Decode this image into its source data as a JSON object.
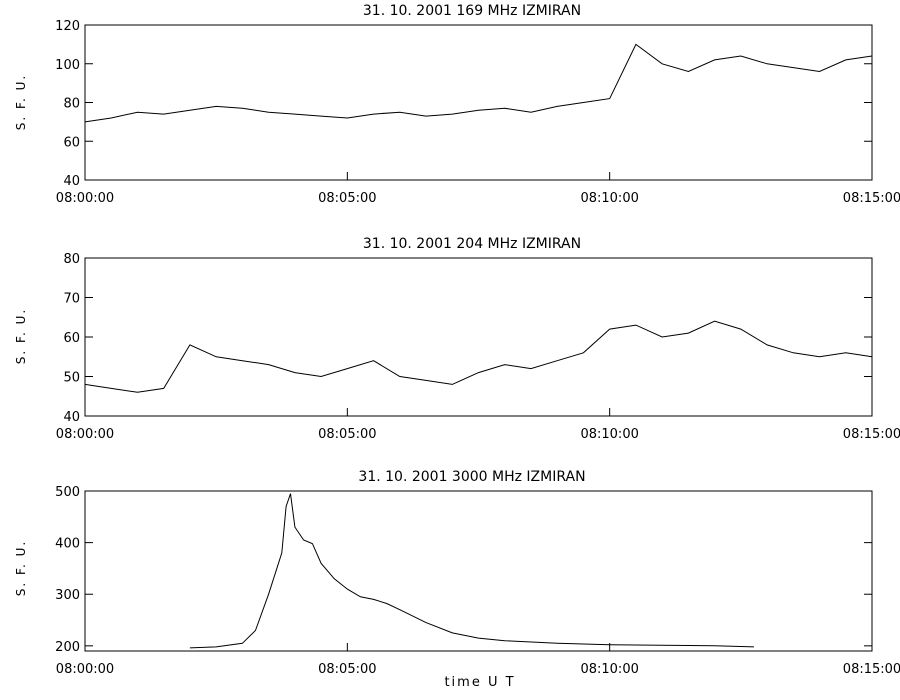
{
  "chart_data": [
    {
      "type": "line",
      "title": "31.  10.  2001    169  MHz    IZMIRAN",
      "ylabel": "S. F. U.",
      "xlabel": "",
      "ylim": [
        40,
        120
      ],
      "yticks": [
        40,
        60,
        80,
        100,
        120
      ],
      "xlim": [
        "08:00:00",
        "08:15:00"
      ],
      "xticks": [
        "08:00:00",
        "08:05:00",
        "08:10:00",
        "08:15:00"
      ],
      "series": [
        {
          "x": [
            "08:00:00",
            "08:00:30",
            "08:01:00",
            "08:01:30",
            "08:02:00",
            "08:02:30",
            "08:03:00",
            "08:03:30",
            "08:04:00",
            "08:04:30",
            "08:05:00",
            "08:05:30",
            "08:06:00",
            "08:06:30",
            "08:07:00",
            "08:07:30",
            "08:08:00",
            "08:08:30",
            "08:09:00",
            "08:09:30",
            "08:10:00",
            "08:10:30",
            "08:11:00",
            "08:11:30",
            "08:12:00",
            "08:12:30",
            "08:13:00",
            "08:13:30",
            "08:14:00",
            "08:14:30",
            "08:15:00"
          ],
          "y": [
            70,
            72,
            75,
            74,
            76,
            78,
            77,
            75,
            74,
            73,
            72,
            74,
            75,
            73,
            74,
            76,
            77,
            75,
            78,
            80,
            82,
            110,
            100,
            96,
            102,
            104,
            100,
            98,
            96,
            102,
            104
          ]
        }
      ]
    },
    {
      "type": "line",
      "title": "31.  10.  2001    204  MHz    IZMIRAN",
      "ylabel": "S. F. U.",
      "xlabel": "",
      "ylim": [
        40,
        80
      ],
      "yticks": [
        40,
        50,
        60,
        70,
        80
      ],
      "xlim": [
        "08:00:00",
        "08:15:00"
      ],
      "xticks": [
        "08:00:00",
        "08:05:00",
        "08:10:00",
        "08:15:00"
      ],
      "series": [
        {
          "x": [
            "08:00:00",
            "08:00:30",
            "08:01:00",
            "08:01:30",
            "08:02:00",
            "08:02:30",
            "08:03:00",
            "08:03:30",
            "08:04:00",
            "08:04:30",
            "08:05:00",
            "08:05:30",
            "08:06:00",
            "08:06:30",
            "08:07:00",
            "08:07:30",
            "08:08:00",
            "08:08:30",
            "08:09:00",
            "08:09:30",
            "08:10:00",
            "08:10:30",
            "08:11:00",
            "08:11:30",
            "08:12:00",
            "08:12:30",
            "08:13:00",
            "08:13:30",
            "08:14:00",
            "08:14:30",
            "08:15:00"
          ],
          "y": [
            48,
            47,
            46,
            47,
            58,
            55,
            54,
            53,
            51,
            50,
            52,
            54,
            50,
            49,
            48,
            51,
            53,
            52,
            54,
            56,
            62,
            63,
            60,
            61,
            64,
            62,
            58,
            56,
            55,
            56,
            55
          ]
        }
      ]
    },
    {
      "type": "line",
      "title": "31.  10.  2001    3000  MHz    IZMIRAN",
      "ylabel": "S. F. U.",
      "xlabel": "time   U T",
      "ylim": [
        190,
        500
      ],
      "yticks": [
        200,
        300,
        400,
        500
      ],
      "xlim": [
        "08:00:00",
        "08:15:00"
      ],
      "xticks": [
        "08:00:00",
        "08:05:00",
        "08:10:00",
        "08:15:00"
      ],
      "series": [
        {
          "x": [
            "08:02:00",
            "08:02:30",
            "08:03:00",
            "08:03:15",
            "08:03:30",
            "08:03:45",
            "08:03:50",
            "08:03:55",
            "08:04:00",
            "08:04:10",
            "08:04:20",
            "08:04:30",
            "08:04:45",
            "08:05:00",
            "08:05:15",
            "08:05:30",
            "08:05:45",
            "08:06:00",
            "08:06:30",
            "08:07:00",
            "08:07:30",
            "08:08:00",
            "08:09:00",
            "08:10:00",
            "08:11:00",
            "08:12:00",
            "08:12:45"
          ],
          "y": [
            196,
            198,
            205,
            230,
            300,
            380,
            470,
            495,
            430,
            405,
            398,
            360,
            330,
            310,
            295,
            290,
            282,
            270,
            245,
            225,
            215,
            210,
            205,
            202,
            201,
            200,
            198
          ]
        }
      ]
    }
  ]
}
